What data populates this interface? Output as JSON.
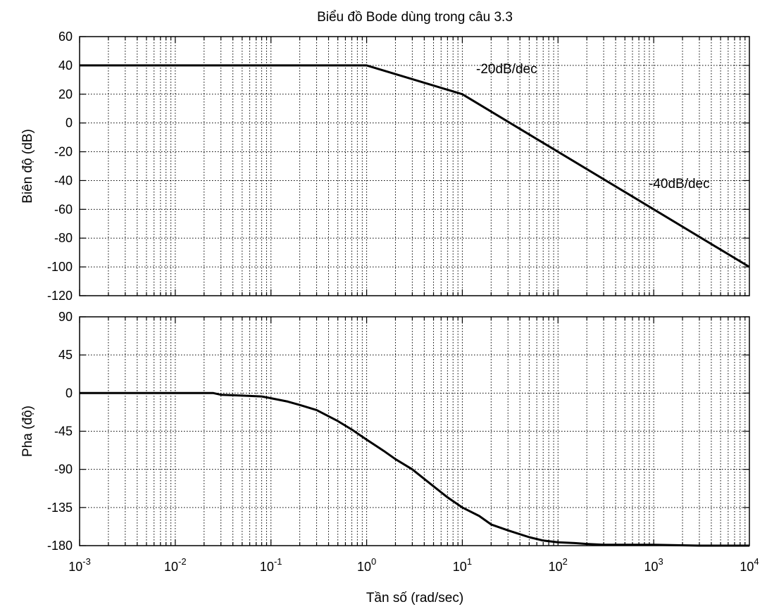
{
  "chart_data": [
    {
      "type": "line",
      "title": "Biểu đồ Bode dùng trong câu 3.3",
      "xlabel": "",
      "ylabel": "Biên độ (dB)",
      "xscale": "log",
      "xlim": [
        0.001,
        10000
      ],
      "ylim": [
        -120,
        60
      ],
      "yticks": [
        "60",
        "40",
        "20",
        "0",
        "-20",
        "-40",
        "-60",
        "-80",
        "-100",
        "-120"
      ],
      "grid": true,
      "series": [
        {
          "x": [
            0.001,
            1,
            10,
            10000
          ],
          "y": [
            40,
            40,
            20,
            -100
          ]
        }
      ],
      "annotations": [
        {
          "text": "-20dB/dec",
          "x": 5,
          "y": 37
        },
        {
          "text": "-40dB/dec",
          "x": 100,
          "y": -42
        }
      ]
    },
    {
      "type": "line",
      "title": "",
      "xlabel": "Tần số  (rad/sec)",
      "ylabel": "Pha (độ)",
      "xscale": "log",
      "xlim": [
        0.001,
        10000
      ],
      "ylim": [
        -180,
        90
      ],
      "yticks": [
        "90",
        "45",
        "0",
        "-45",
        "-90",
        "-135",
        "-180"
      ],
      "xticks": [
        {
          "base": "10",
          "exp": "-3"
        },
        {
          "base": "10",
          "exp": "-2"
        },
        {
          "base": "10",
          "exp": "-1"
        },
        {
          "base": "10",
          "exp": "0"
        },
        {
          "base": "10",
          "exp": "1"
        },
        {
          "base": "10",
          "exp": "2"
        },
        {
          "base": "10",
          "exp": "3"
        },
        {
          "base": "10",
          "exp": "4"
        }
      ],
      "grid": true,
      "series": [
        {
          "x": [
            0.001,
            0.025,
            0.03,
            0.05,
            0.08,
            0.1,
            0.15,
            0.2,
            0.3,
            0.5,
            0.7,
            1,
            1.5,
            2,
            3,
            5,
            7,
            10,
            15,
            20,
            30,
            50,
            70,
            100,
            150,
            200,
            300,
            500,
            1000,
            3000,
            10000
          ],
          "y": [
            0,
            0,
            -2,
            -3,
            -4,
            -6,
            -10,
            -14,
            -20,
            -33,
            -43,
            -55,
            -68,
            -78,
            -90,
            -110,
            -123,
            -135,
            -145,
            -155,
            -162,
            -170,
            -174,
            -176,
            -177,
            -178,
            -179,
            -179,
            -179,
            -180,
            -180
          ]
        }
      ]
    }
  ]
}
